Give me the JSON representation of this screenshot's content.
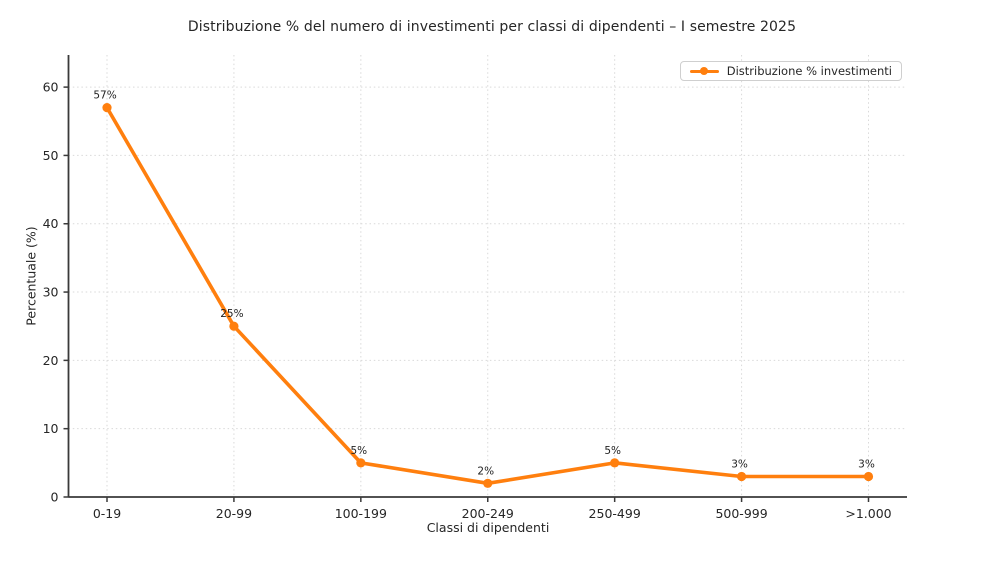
{
  "chart_data": {
    "type": "line",
    "title": "Distribuzione % del numero di investimenti per classi di dipendenti – I semestre 2025",
    "categories": [
      "0-19",
      "20-99",
      "100-199",
      "200-249",
      "250-499",
      "500-999",
      ">1.000"
    ],
    "series": [
      {
        "name": "Distribuzione % investimenti",
        "values": [
          57,
          25,
          5,
          2,
          5,
          3,
          3
        ],
        "point_labels": [
          "57%",
          "25%",
          "5%",
          "2%",
          "5%",
          "3%",
          "3%"
        ]
      }
    ],
    "xlabel": "Classi di dipendenti",
    "ylabel": "Percentuale (%)",
    "ylim": [
      0,
      64.7
    ],
    "yticks": [
      0,
      10,
      20,
      30,
      40,
      50,
      60
    ],
    "grid": "dotted, horizontal and vertical",
    "legend_position": "upper right",
    "colors": {
      "line": "#ff7f0e",
      "grid": "#d9d9d9",
      "axis": "#3a3a3a",
      "text": "#262626",
      "point_label": "#1f1f1f",
      "legend_border": "#cfcfcf"
    }
  }
}
